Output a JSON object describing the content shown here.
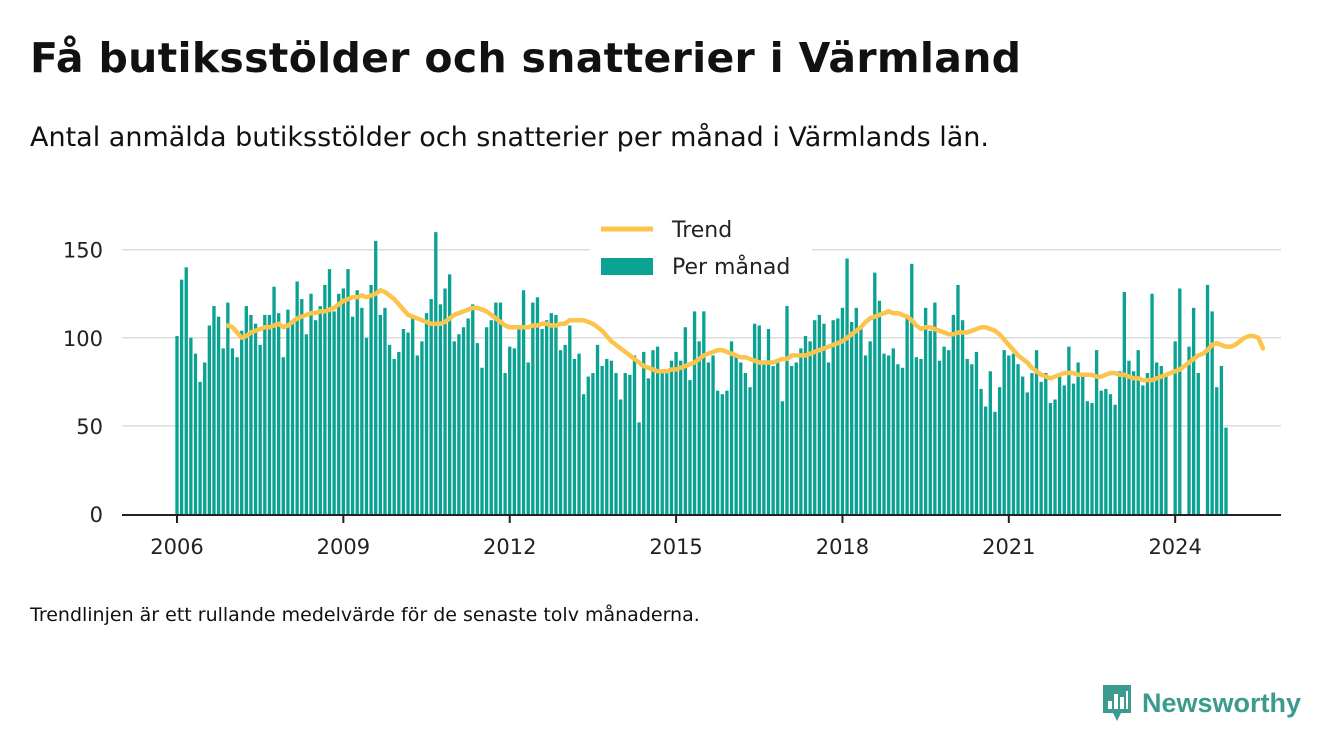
{
  "title": "Få butiksstölder och snatterier i Värmland",
  "subtitle": "Antal anmälda butiksstölder och snatterier per månad i Värmlands län.",
  "footnote": "Trendlinjen är ett rullande medelvärde för de senaste tolv månaderna.",
  "brand": {
    "name": "Newsworthy",
    "icon": "newsworthy-logo-icon",
    "color": "#3a9b8e"
  },
  "colors": {
    "bars": "#0aa293",
    "trend": "#fcc44d",
    "grid": "#dcdcdc",
    "axis": "#222222"
  },
  "chart_data": {
    "type": "bar",
    "x_start": "2006-01",
    "x_ticks": [
      "2006",
      "2009",
      "2012",
      "2015",
      "2018",
      "2021",
      "2024"
    ],
    "y_ticks": [
      "0",
      "50",
      "100",
      "150"
    ],
    "ylim": [
      0,
      168
    ],
    "grid": true,
    "legend_position": "top-center",
    "series": [
      {
        "name": "Per månad",
        "type": "bar",
        "values": [
          101,
          133,
          140,
          100,
          91,
          75,
          86,
          107,
          118,
          112,
          94,
          120,
          94,
          89,
          104,
          118,
          113,
          108,
          96,
          113,
          113,
          129,
          114,
          89,
          116,
          109,
          132,
          122,
          102,
          125,
          110,
          118,
          130,
          139,
          115,
          125,
          128,
          139,
          112,
          127,
          117,
          100,
          130,
          155,
          113,
          117,
          96,
          88,
          92,
          105,
          103,
          111,
          90,
          98,
          114,
          122,
          160,
          119,
          128,
          136,
          98,
          102,
          106,
          111,
          119,
          97,
          83,
          106,
          110,
          120,
          120,
          80,
          95,
          94,
          105,
          127,
          86,
          120,
          123,
          105,
          110,
          114,
          113,
          93,
          96,
          107,
          88,
          91,
          68,
          78,
          80,
          96,
          84,
          88,
          87,
          80,
          65,
          80,
          79,
          90,
          52,
          92,
          77,
          93,
          95,
          80,
          82,
          87,
          92,
          87,
          106,
          76,
          115,
          98,
          115,
          86,
          90,
          70,
          68,
          70,
          98,
          90,
          86,
          80,
          72,
          108,
          107,
          86,
          105,
          84,
          86,
          64,
          118,
          84,
          86,
          94,
          101,
          98,
          110,
          113,
          108,
          86,
          110,
          111,
          117,
          145,
          109,
          117,
          105,
          90,
          98,
          137,
          121,
          91,
          90,
          94,
          85,
          83,
          113,
          142,
          89,
          88,
          117,
          104,
          120,
          87,
          95,
          93,
          113,
          130,
          110,
          88,
          85,
          92,
          71,
          61,
          81,
          58,
          72,
          93,
          90,
          91,
          85,
          78,
          69,
          80,
          93,
          75,
          80,
          63,
          65,
          80,
          73,
          95,
          74,
          86,
          80,
          64,
          63,
          93,
          70,
          71,
          68,
          62,
          81,
          126,
          87,
          81,
          93,
          73,
          80,
          125,
          86,
          84,
          80,
          0,
          98,
          128,
          0,
          95,
          117,
          80,
          0,
          130,
          115,
          72,
          84,
          49
        ]
      },
      {
        "name": "Trend",
        "type": "line",
        "start_index": 11,
        "values": [
          107,
          106,
          103,
          100,
          101,
          103,
          104,
          105,
          106,
          106,
          107,
          108,
          106,
          107,
          109,
          111,
          112,
          113,
          114,
          114,
          115,
          115,
          116,
          117,
          119,
          121,
          122,
          123,
          123,
          124,
          123,
          124,
          125,
          127,
          126,
          124,
          122,
          119,
          116,
          113,
          112,
          111,
          110,
          109,
          108,
          108,
          108,
          109,
          111,
          113,
          114,
          115,
          116,
          117,
          117,
          116,
          115,
          113,
          111,
          109,
          107,
          106,
          106,
          106,
          106,
          106,
          107,
          107,
          108,
          108,
          107,
          107,
          108,
          108,
          110,
          110,
          110,
          110,
          109,
          108,
          106,
          104,
          101,
          98,
          96,
          94,
          92,
          90,
          88,
          86,
          84,
          83,
          82,
          81,
          81,
          81,
          82,
          82,
          83,
          84,
          85,
          86,
          88,
          90,
          91,
          92,
          93,
          93,
          92,
          91,
          90,
          89,
          89,
          88,
          87,
          86,
          86,
          86,
          86,
          87,
          88,
          88,
          90,
          90,
          90,
          90,
          91,
          92,
          93,
          94,
          95,
          96,
          97,
          98,
          100,
          102,
          104,
          106,
          109,
          111,
          112,
          113,
          114,
          115,
          114,
          114,
          113,
          112,
          110,
          107,
          105,
          106,
          106,
          105,
          104,
          103,
          102,
          102,
          103,
          103,
          103,
          104,
          105,
          106,
          106,
          105,
          104,
          102,
          99,
          96,
          93,
          90,
          88,
          86,
          83,
          81,
          79,
          78,
          77,
          78,
          79,
          80,
          80,
          80,
          79,
          79,
          79,
          79,
          78,
          78,
          79,
          80,
          80,
          79,
          79,
          78,
          77,
          77,
          76,
          76,
          76,
          77,
          78,
          79,
          80,
          81,
          82,
          84,
          86,
          88,
          90,
          91,
          93,
          96,
          97,
          96,
          95,
          95,
          96,
          98,
          100,
          101,
          101,
          100,
          94
        ]
      }
    ]
  }
}
